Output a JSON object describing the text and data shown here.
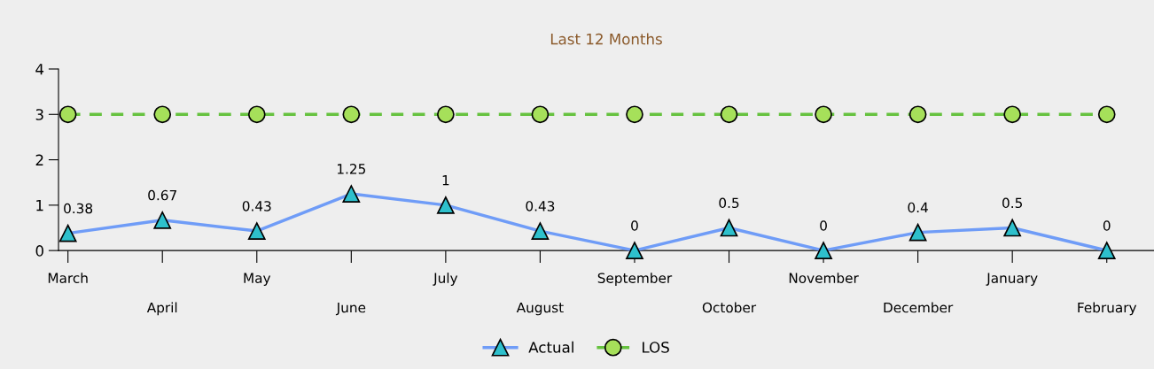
{
  "chart_data": {
    "type": "line",
    "title": "Last 12 Months",
    "categories": [
      "March",
      "April",
      "May",
      "June",
      "July",
      "August",
      "September",
      "October",
      "November",
      "December",
      "January",
      "February"
    ],
    "series": [
      {
        "name": "Actual",
        "color": "#6f9cf7",
        "marker": "triangle",
        "line_style": "solid",
        "values": [
          0.38,
          0.67,
          0.43,
          1.25,
          1,
          0.43,
          0,
          0.5,
          0,
          0.4,
          0.5,
          0
        ],
        "value_labels": [
          "0.38",
          "0.67",
          "0.43",
          "1.25",
          "1",
          "0.43",
          "0",
          "0.5",
          "0",
          "0.4",
          "0.5",
          "0"
        ]
      },
      {
        "name": "LOS",
        "color": "#66c23f",
        "marker": "circle",
        "line_style": "dashed",
        "values": [
          3,
          3,
          3,
          3,
          3,
          3,
          3,
          3,
          3,
          3,
          3,
          3
        ]
      }
    ],
    "ylim": [
      0,
      4
    ],
    "yticks": [
      0,
      1,
      2,
      3,
      4
    ],
    "grid": false,
    "legend": "bottom"
  }
}
